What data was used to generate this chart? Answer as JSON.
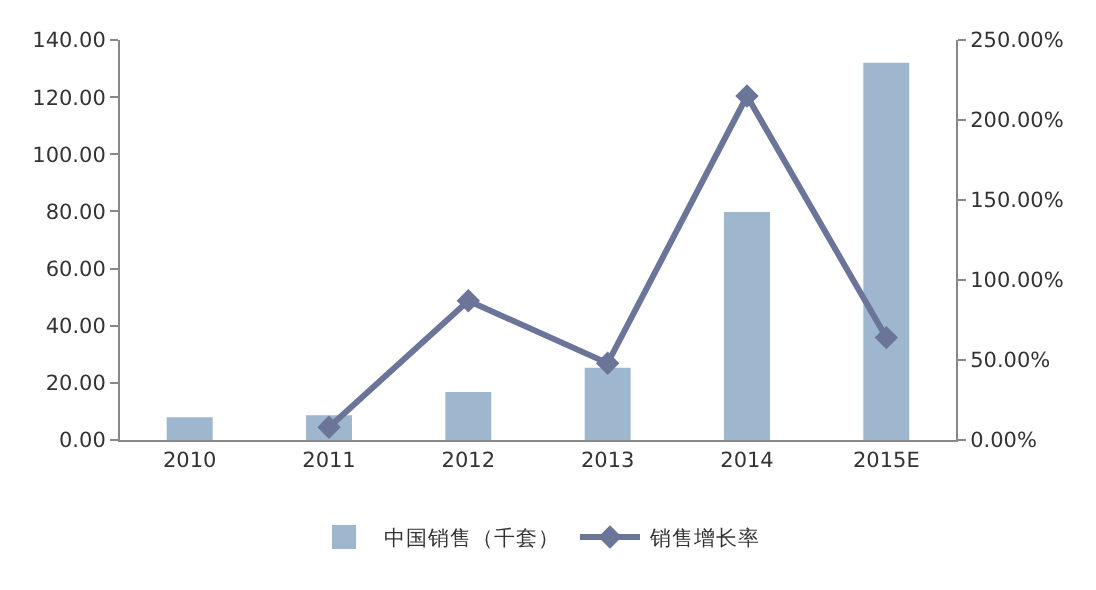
{
  "chart_data": {
    "type": "bar",
    "categories": [
      "2010",
      "2011",
      "2012",
      "2013",
      "2014",
      "2015E"
    ],
    "series": [
      {
        "name": "中国销售（千套）",
        "color": "#9fb6cf",
        "values": [
          8.0,
          8.7,
          16.8,
          25.3,
          79.8,
          132.0
        ]
      },
      {
        "name": "销售增长率",
        "type": "line",
        "axis": "y2",
        "color": "#6b7499",
        "marker": "diamond",
        "values": [
          null,
          8,
          87,
          48,
          215,
          64
        ]
      }
    ],
    "ylim": [
      0,
      140
    ],
    "yticks": [
      {
        "value": 0,
        "label": "0.00"
      },
      {
        "value": 20,
        "label": "20.00"
      },
      {
        "value": 40,
        "label": "40.00"
      },
      {
        "value": 60,
        "label": "60.00"
      },
      {
        "value": 80,
        "label": "80.00"
      },
      {
        "value": 100,
        "label": "100.00"
      },
      {
        "value": 120,
        "label": "120.00"
      },
      {
        "value": 140,
        "label": "140.00"
      }
    ],
    "y2lim": [
      0,
      250
    ],
    "y2ticks": [
      {
        "value": 0,
        "label": "0.00%"
      },
      {
        "value": 50,
        "label": "50.00%"
      },
      {
        "value": 100,
        "label": "100.00%"
      },
      {
        "value": 150,
        "label": "150.00%"
      },
      {
        "value": 200,
        "label": "200.00%"
      },
      {
        "value": 250,
        "label": "250.00%"
      }
    ],
    "grid": false,
    "legend": "bottom"
  }
}
